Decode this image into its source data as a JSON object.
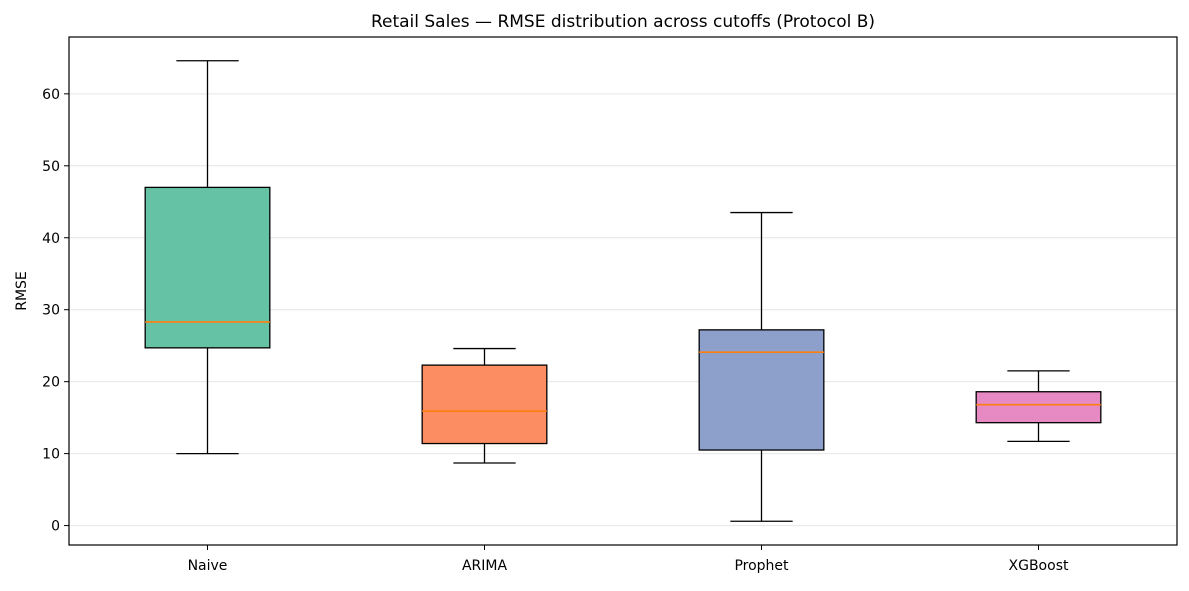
{
  "chart_data": {
    "type": "box",
    "title": "Retail Sales — RMSE distribution across cutoffs (Protocol B)",
    "xlabel": "",
    "ylabel": "RMSE",
    "ylim": [
      -2.7,
      67.9
    ],
    "yticks": [
      0,
      10,
      20,
      30,
      40,
      50,
      60
    ],
    "grid": {
      "y": true,
      "x": false
    },
    "legend": "none",
    "categories": [
      "Naive",
      "ARIMA",
      "Prophet",
      "XGBoost"
    ],
    "boxes": [
      {
        "category": "Naive",
        "whisker_low": 10.0,
        "q1": 24.7,
        "median": 28.3,
        "q3": 47.0,
        "whisker_high": 64.6,
        "color": "#66c2a5"
      },
      {
        "category": "ARIMA",
        "whisker_low": 8.7,
        "q1": 11.4,
        "median": 15.9,
        "q3": 22.3,
        "whisker_high": 24.6,
        "color": "#fc8d62"
      },
      {
        "category": "Prophet",
        "whisker_low": 0.6,
        "q1": 10.5,
        "median": 24.1,
        "q3": 27.2,
        "whisker_high": 43.5,
        "color": "#8da0cb"
      },
      {
        "category": "XGBoost",
        "whisker_low": 11.7,
        "q1": 14.3,
        "median": 16.8,
        "q3": 18.6,
        "whisker_high": 21.5,
        "color": "#e78ac3"
      }
    ],
    "median_color": "#ff7f0e",
    "grid_color": "#e6e6e6"
  }
}
